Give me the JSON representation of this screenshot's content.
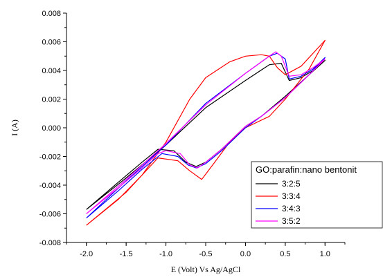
{
  "chart_data": {
    "type": "line",
    "title": "",
    "xlabel": "E (Volt) Vs Ag/AgCl",
    "ylabel": "I (A)",
    "xlim": [
      -2.25,
      1.25
    ],
    "ylim": [
      -0.008,
      0.008
    ],
    "x_ticks": [
      -2.0,
      -1.5,
      -1.0,
      -0.5,
      0.0,
      0.5,
      1.0
    ],
    "x_tick_labels": [
      "-2.0",
      "-1.5",
      "-1.0",
      "-0.5",
      "0.0",
      "0.5",
      "1.0"
    ],
    "y_ticks": [
      -0.008,
      -0.006,
      -0.004,
      -0.002,
      0.0,
      0.002,
      0.004,
      0.006,
      0.008
    ],
    "y_tick_labels": [
      "-0.008",
      "-0.006",
      "-0.004",
      "-0.002",
      "0.000",
      "0.002",
      "0.004",
      "0.006",
      "0.008"
    ],
    "grid": false,
    "legend_title": "GO:parafin:nano bentonit",
    "legend_position": "lower-right",
    "series": [
      {
        "name": "3:2:5",
        "color": "#000000",
        "x": [
          -2.0,
          -1.5,
          -1.0,
          -0.5,
          0.0,
          0.3,
          0.45,
          0.55,
          0.7,
          0.85,
          1.0,
          0.8,
          0.5,
          0.2,
          0.0,
          -0.3,
          -0.5,
          -0.62,
          -0.75,
          -0.9,
          -1.1,
          -1.3,
          -1.6,
          -2.0
        ],
        "y": [
          -0.0057,
          -0.0035,
          -0.0012,
          0.0014,
          0.0033,
          0.0044,
          0.0045,
          0.0033,
          0.0035,
          0.004,
          0.0047,
          0.0037,
          0.0022,
          0.0008,
          0.0001,
          -0.0015,
          -0.0024,
          -0.0027,
          -0.0024,
          -0.0016,
          -0.0015,
          -0.0024,
          -0.0038,
          -0.0057
        ]
      },
      {
        "name": "3:3:4",
        "color": "#ff0000",
        "x": [
          -2.0,
          -1.6,
          -1.3,
          -1.0,
          -0.7,
          -0.5,
          -0.2,
          0.0,
          0.2,
          0.3,
          0.4,
          0.5,
          0.7,
          1.0,
          0.8,
          0.5,
          0.3,
          0.0,
          -0.2,
          -0.4,
          -0.55,
          -0.6,
          -0.7,
          -0.85,
          -1.1,
          -1.2,
          -1.5,
          -2.0
        ],
        "y": [
          -0.0068,
          -0.005,
          -0.0033,
          -0.001,
          0.002,
          0.0035,
          0.0046,
          0.005,
          0.0051,
          0.005,
          0.0042,
          0.0037,
          0.0043,
          0.0061,
          0.0041,
          0.002,
          0.0008,
          0.0,
          -0.001,
          -0.0025,
          -0.0036,
          -0.0034,
          -0.003,
          -0.0023,
          -0.0021,
          -0.0027,
          -0.0045,
          -0.0068
        ]
      },
      {
        "name": "3:4:3",
        "color": "#0000ff",
        "x": [
          -2.0,
          -1.5,
          -1.0,
          -0.5,
          0.0,
          0.3,
          0.4,
          0.5,
          0.55,
          0.7,
          0.85,
          1.0,
          0.8,
          0.5,
          0.2,
          0.0,
          -0.3,
          -0.5,
          -0.62,
          -0.72,
          -0.85,
          -1.05,
          -1.3,
          -1.6,
          -2.0
        ],
        "y": [
          -0.0063,
          -0.0037,
          -0.0012,
          0.0017,
          0.0038,
          0.005,
          0.0052,
          0.0048,
          0.0034,
          0.0036,
          0.0041,
          0.0049,
          0.0037,
          0.0021,
          0.0008,
          0.0,
          -0.0016,
          -0.0025,
          -0.0028,
          -0.0026,
          -0.002,
          -0.0018,
          -0.0029,
          -0.0044,
          -0.0063
        ]
      },
      {
        "name": "3:5:2",
        "color": "#ff00ff",
        "x": [
          -2.0,
          -1.5,
          -1.0,
          -0.5,
          0.0,
          0.3,
          0.38,
          0.45,
          0.55,
          0.7,
          0.85,
          1.0,
          0.8,
          0.5,
          0.2,
          0.0,
          -0.3,
          -0.5,
          -0.6,
          -0.7,
          -0.82,
          -1.0,
          -1.1,
          -1.3,
          -1.6,
          -2.0
        ],
        "y": [
          -0.006,
          -0.0036,
          -0.0011,
          0.0016,
          0.0038,
          0.005,
          0.0053,
          0.005,
          0.0036,
          0.0037,
          0.0042,
          0.0048,
          0.0037,
          0.0021,
          0.0008,
          0.0001,
          -0.0015,
          -0.0024,
          -0.0028,
          -0.0026,
          -0.0018,
          -0.0016,
          -0.0018,
          -0.0028,
          -0.0042,
          -0.006
        ]
      }
    ]
  }
}
